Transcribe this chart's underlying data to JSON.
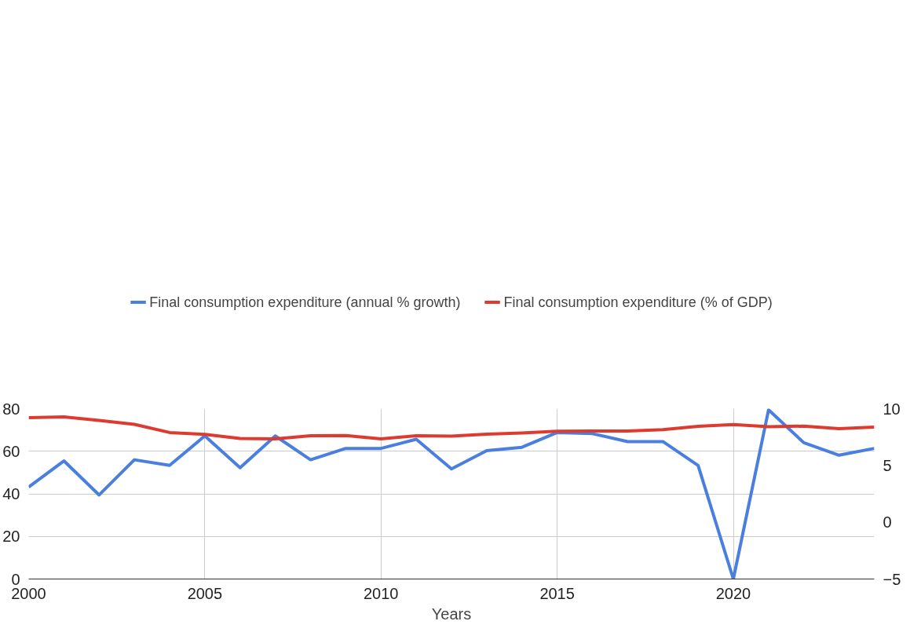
{
  "chart_data": {
    "type": "line",
    "xlabel": "Years",
    "x": [
      2000,
      2001,
      2002,
      2003,
      2004,
      2005,
      2006,
      2007,
      2008,
      2009,
      2010,
      2011,
      2012,
      2013,
      2014,
      2015,
      2016,
      2017,
      2018,
      2019,
      2020,
      2021,
      2022,
      2023,
      2024
    ],
    "series": [
      {
        "name": "Final consumption expenditure (annual % growth)",
        "color": "#4a7fe0",
        "axis": "y2",
        "values": [
          3.1,
          5.4,
          2.4,
          5.5,
          5.0,
          7.6,
          4.8,
          7.6,
          5.5,
          6.5,
          6.5,
          7.3,
          4.7,
          6.3,
          6.6,
          7.9,
          7.8,
          7.1,
          7.1,
          5.0,
          -5.0,
          9.9,
          7.0,
          5.9,
          6.5
        ]
      },
      {
        "name": "Final consumption expenditure (% of GDP)",
        "color": "#de3b30",
        "values": [
          75.8,
          76.1,
          74.5,
          72.6,
          68.8,
          67.9,
          66.0,
          65.8,
          67.3,
          67.4,
          65.8,
          67.3,
          67.1,
          68.0,
          68.6,
          69.4,
          69.5,
          69.5,
          70.1,
          71.7,
          72.5,
          71.5,
          71.8,
          70.6,
          71.3
        ]
      }
    ],
    "xlim": [
      2000,
      2024
    ],
    "xticks": [
      2000,
      2005,
      2010,
      2015,
      2020
    ],
    "ylim": [
      0,
      80
    ],
    "yticks": [
      0,
      20,
      40,
      60,
      80
    ],
    "y2lim": [
      -5,
      10
    ],
    "y2ticks": [
      -5,
      0,
      5,
      10
    ],
    "grid": true,
    "legend": "top",
    "line_style": "solid",
    "marker": "none"
  }
}
